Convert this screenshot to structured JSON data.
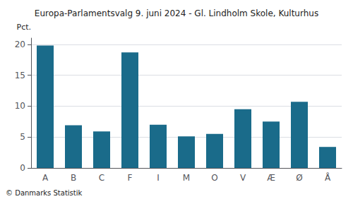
{
  "chart_data": {
    "type": "bar",
    "title": "Europa-Parlamentsvalg 9. juni 2024 - Gl. Lindholm Skole, Kulturhus",
    "ylabel": "Pct.",
    "annotations": [
      "© Danmarks Statistik"
    ],
    "categories": [
      "A",
      "B",
      "C",
      "F",
      "I",
      "M",
      "O",
      "V",
      "Æ",
      "Ø",
      "Å"
    ],
    "values": [
      19.8,
      6.9,
      5.9,
      18.7,
      7.0,
      5.1,
      5.5,
      9.5,
      7.5,
      10.7,
      3.4
    ],
    "color": "#1a6b8a",
    "ylim": [
      0,
      21
    ],
    "yticks": [
      0,
      5,
      10,
      15,
      20
    ],
    "grid": true
  }
}
